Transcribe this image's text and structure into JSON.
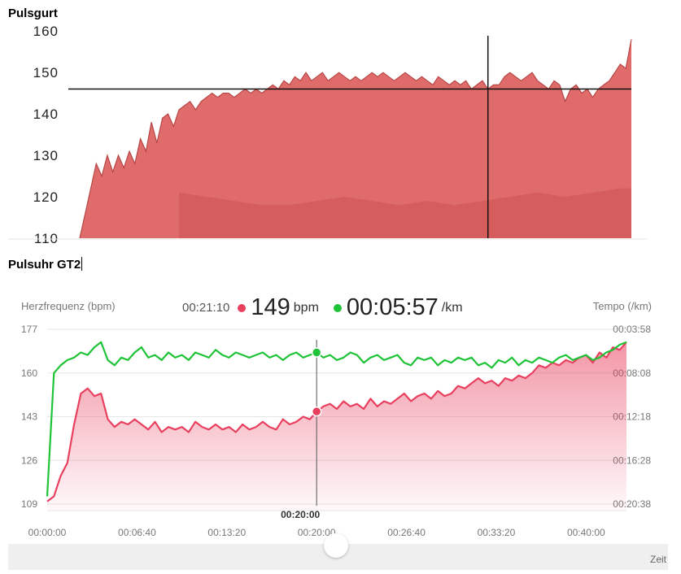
{
  "titles": {
    "top": "Pulsgurt",
    "bottom": "Pulsuhr GT2"
  },
  "chart_data": [
    {
      "type": "area",
      "title": "Pulsgurt",
      "xlabel": "",
      "ylabel": "",
      "yticks": [
        "160",
        "150",
        "140",
        "130",
        "120",
        "110"
      ],
      "ytick_values": [
        160,
        150,
        140,
        130,
        120,
        110
      ],
      "ylim": [
        110,
        162
      ],
      "grid": false,
      "crosshair": {
        "x_frac": 0.74,
        "y": 146
      },
      "series": [
        {
          "color": "#e06b6b",
          "x": [
            0.0,
            0.01,
            0.02,
            0.03,
            0.04,
            0.05,
            0.06,
            0.07,
            0.08,
            0.09,
            0.1,
            0.11,
            0.12,
            0.13,
            0.14,
            0.15,
            0.16,
            0.17,
            0.18,
            0.19,
            0.2,
            0.21,
            0.22,
            0.23,
            0.24,
            0.25,
            0.26,
            0.27,
            0.28,
            0.29,
            0.3,
            0.31,
            0.32,
            0.33,
            0.34,
            0.35,
            0.36,
            0.37,
            0.38,
            0.39,
            0.4,
            0.41,
            0.42,
            0.43,
            0.44,
            0.45,
            0.46,
            0.47,
            0.48,
            0.49,
            0.5,
            0.51,
            0.52,
            0.53,
            0.54,
            0.55,
            0.56,
            0.57,
            0.58,
            0.59,
            0.6,
            0.61,
            0.62,
            0.63,
            0.64,
            0.65,
            0.66,
            0.67,
            0.68,
            0.69,
            0.7,
            0.71,
            0.72,
            0.73,
            0.74,
            0.75,
            0.76,
            0.77,
            0.78,
            0.79,
            0.8,
            0.81,
            0.82,
            0.83,
            0.84,
            0.85,
            0.86,
            0.87,
            0.88,
            0.89,
            0.9,
            0.91,
            0.92,
            0.93,
            0.94,
            0.95,
            0.96,
            0.97,
            0.98,
            0.99,
            1.0
          ],
          "values": [
            110,
            116,
            122,
            128,
            125,
            130,
            126,
            130,
            127,
            131,
            128,
            134,
            131,
            138,
            133,
            139,
            140,
            137,
            141,
            142,
            143,
            141,
            143,
            144,
            145,
            144,
            145,
            145,
            144,
            145,
            146,
            145,
            146,
            145,
            146,
            147,
            146,
            148,
            147,
            149,
            148,
            150,
            148,
            149,
            150,
            148,
            149,
            150,
            149,
            148,
            149,
            148,
            149,
            150,
            149,
            150,
            149,
            148,
            149,
            150,
            149,
            148,
            149,
            148,
            147,
            149,
            148,
            147,
            148,
            147,
            148,
            146,
            147,
            148,
            146,
            147,
            147,
            149,
            150,
            149,
            148,
            149,
            150,
            148,
            147,
            146,
            148,
            147,
            143,
            146,
            147,
            145,
            146,
            144,
            146,
            147,
            148,
            150,
            152,
            151,
            158
          ]
        },
        {
          "color": "#d45a5a",
          "x": [
            0.18,
            0.23,
            0.28,
            0.33,
            0.38,
            0.43,
            0.48,
            0.53,
            0.58,
            0.63,
            0.68,
            0.73,
            0.78,
            0.83,
            0.88,
            0.93,
            0.98,
            1.0
          ],
          "values": [
            121,
            120,
            119,
            118,
            118,
            119,
            120,
            119,
            118,
            119,
            118,
            119,
            120,
            121,
            120,
            121,
            122,
            122
          ]
        }
      ]
    },
    {
      "type": "line",
      "title": "",
      "ylabel": "Herzfrequenz (bpm)",
      "ylabel_right": "Tempo (/km)",
      "xlabel": "Zeit",
      "ylim": [
        109,
        177
      ],
      "yticks": [
        "177",
        "160",
        "143",
        "126",
        "109"
      ],
      "ytick_values": [
        177,
        160,
        143,
        126,
        109
      ],
      "yticks_right": [
        "00:03:58",
        "00:08:08",
        "00:12:18",
        "00:16:28",
        "00:20:38"
      ],
      "xlim": [
        0,
        43
      ],
      "xticks": [
        "00:00:00",
        "00:06:40",
        "00:13:20",
        "00:20:00",
        "00:26:40",
        "00:33:20",
        "00:40:00"
      ],
      "xtick_values": [
        0,
        6.667,
        13.333,
        20,
        26.667,
        33.333,
        40
      ],
      "cursor": {
        "label": "00:20:00",
        "time": "00:21:10",
        "heart_rate": "149",
        "hr_unit": "bpm",
        "pace": "00:05:57",
        "pace_unit": "/km"
      },
      "series": [
        {
          "name": "Herzfrequenz (bpm)",
          "color": "#e8405e",
          "x": [
            0,
            0.5,
            1,
            1.5,
            2,
            2.5,
            3,
            3.5,
            4,
            4.5,
            5,
            5.5,
            6,
            6.5,
            7,
            7.5,
            8,
            8.5,
            9,
            9.5,
            10,
            10.5,
            11,
            11.5,
            12,
            12.5,
            13,
            13.5,
            14,
            14.5,
            15,
            15.5,
            16,
            16.5,
            17,
            17.5,
            18,
            18.5,
            19,
            19.5,
            20,
            20.5,
            21,
            21.5,
            22,
            22.5,
            23,
            23.5,
            24,
            24.5,
            25,
            25.5,
            26,
            26.5,
            27,
            27.5,
            28,
            28.5,
            29,
            29.5,
            30,
            30.5,
            31,
            31.5,
            32,
            32.5,
            33,
            33.5,
            34,
            34.5,
            35,
            35.5,
            36,
            36.5,
            37,
            37.5,
            38,
            38.5,
            39,
            39.5,
            40,
            40.5,
            41,
            41.5,
            42,
            42.5,
            43
          ],
          "values": [
            110,
            112,
            120,
            125,
            140,
            152,
            154,
            151,
            152,
            142,
            139,
            141,
            140,
            142,
            140,
            138,
            141,
            137,
            139,
            138,
            139,
            137,
            141,
            139,
            138,
            140,
            138,
            139,
            137,
            140,
            138,
            139,
            141,
            139,
            138,
            142,
            140,
            141,
            143,
            142,
            145,
            147,
            148,
            146,
            149,
            147,
            148,
            146,
            150,
            147,
            149,
            148,
            150,
            152,
            149,
            151,
            152,
            150,
            153,
            151,
            152,
            155,
            154,
            156,
            158,
            156,
            157,
            155,
            158,
            157,
            159,
            158,
            160,
            163,
            162,
            164,
            163,
            165,
            164,
            166,
            167,
            164,
            168,
            166,
            170,
            169,
            172
          ]
        },
        {
          "name": "Tempo (/km)",
          "color": "#1ec337",
          "x": [
            0,
            0.5,
            1,
            1.5,
            2,
            2.5,
            3,
            3.5,
            4,
            4.5,
            5,
            5.5,
            6,
            6.5,
            7,
            7.5,
            8,
            8.5,
            9,
            9.5,
            10,
            10.5,
            11,
            11.5,
            12,
            12.5,
            13,
            13.5,
            14,
            14.5,
            15,
            15.5,
            16,
            16.5,
            17,
            17.5,
            18,
            18.5,
            19,
            19.5,
            20,
            20.5,
            21,
            21.5,
            22,
            22.5,
            23,
            23.5,
            24,
            24.5,
            25,
            25.5,
            26,
            26.5,
            27,
            27.5,
            28,
            28.5,
            29,
            29.5,
            30,
            30.5,
            31,
            31.5,
            32,
            32.5,
            33,
            33.5,
            34,
            34.5,
            35,
            35.5,
            36,
            36.5,
            37,
            37.5,
            38,
            38.5,
            39,
            39.5,
            40,
            40.5,
            41,
            41.5,
            42,
            42.5,
            43
          ],
          "values": [
            112,
            160,
            163,
            165,
            166,
            168,
            167,
            170,
            172,
            165,
            163,
            166,
            165,
            168,
            170,
            166,
            167,
            165,
            168,
            166,
            167,
            165,
            168,
            167,
            166,
            169,
            167,
            166,
            168,
            167,
            166,
            167,
            168,
            166,
            167,
            165,
            167,
            168,
            166,
            167,
            168,
            166,
            167,
            165,
            166,
            168,
            167,
            164,
            166,
            167,
            165,
            166,
            167,
            164,
            163,
            166,
            165,
            166,
            163,
            165,
            164,
            166,
            165,
            166,
            163,
            164,
            162,
            165,
            164,
            166,
            163,
            165,
            164,
            166,
            165,
            164,
            166,
            167,
            165,
            166,
            167,
            165,
            166,
            168,
            169,
            171,
            172
          ]
        }
      ]
    }
  ]
}
